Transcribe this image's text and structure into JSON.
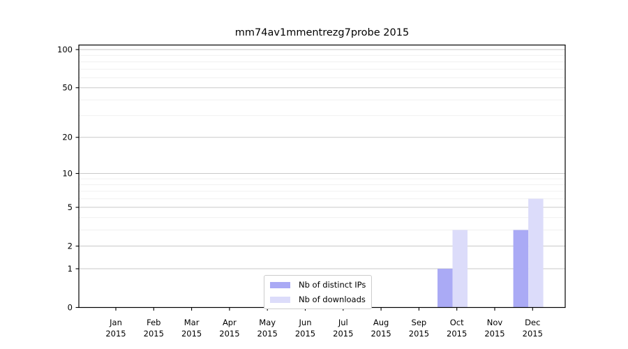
{
  "chart_data": {
    "type": "bar",
    "title": "mm74av1mmentrezg7probe 2015",
    "year": "2015",
    "months": [
      "Jan",
      "Feb",
      "Mar",
      "Apr",
      "May",
      "Jun",
      "Jul",
      "Aug",
      "Sep",
      "Oct",
      "Nov",
      "Dec"
    ],
    "categories": [
      "Jan 2015",
      "Feb 2015",
      "Mar 2015",
      "Apr 2015",
      "May 2015",
      "Jun 2015",
      "Jul 2015",
      "Aug 2015",
      "Sep 2015",
      "Oct 2015",
      "Nov 2015",
      "Dec 2015"
    ],
    "series": [
      {
        "name": "Nb of distinct IPs",
        "color": "#aaaaf5",
        "values": [
          0,
          0,
          0,
          0,
          0,
          0,
          0,
          0,
          0,
          1,
          0,
          3
        ]
      },
      {
        "name": "Nb of downloads",
        "color": "#dcdcfa",
        "values": [
          0,
          0,
          0,
          0,
          0,
          0,
          0,
          0,
          0,
          3,
          0,
          6
        ]
      }
    ],
    "y_axis": {
      "scale": "log1p",
      "major_ticks": [
        0,
        1,
        2,
        5,
        10,
        20,
        50,
        100
      ],
      "minor_ticks": [
        3,
        4,
        6,
        7,
        8,
        9,
        30,
        40,
        60,
        70,
        80,
        90
      ],
      "ylim": [
        0,
        108
      ]
    },
    "xlabel": "",
    "ylabel": "",
    "grid": true,
    "legend": {
      "position": "lower center"
    }
  },
  "colors": {
    "axis": "#000000",
    "text": "#000000",
    "grid_major": "#c9c9c9",
    "grid_minor": "#f0f0f0",
    "legend_border": "#cccccc",
    "background": "#ffffff"
  }
}
